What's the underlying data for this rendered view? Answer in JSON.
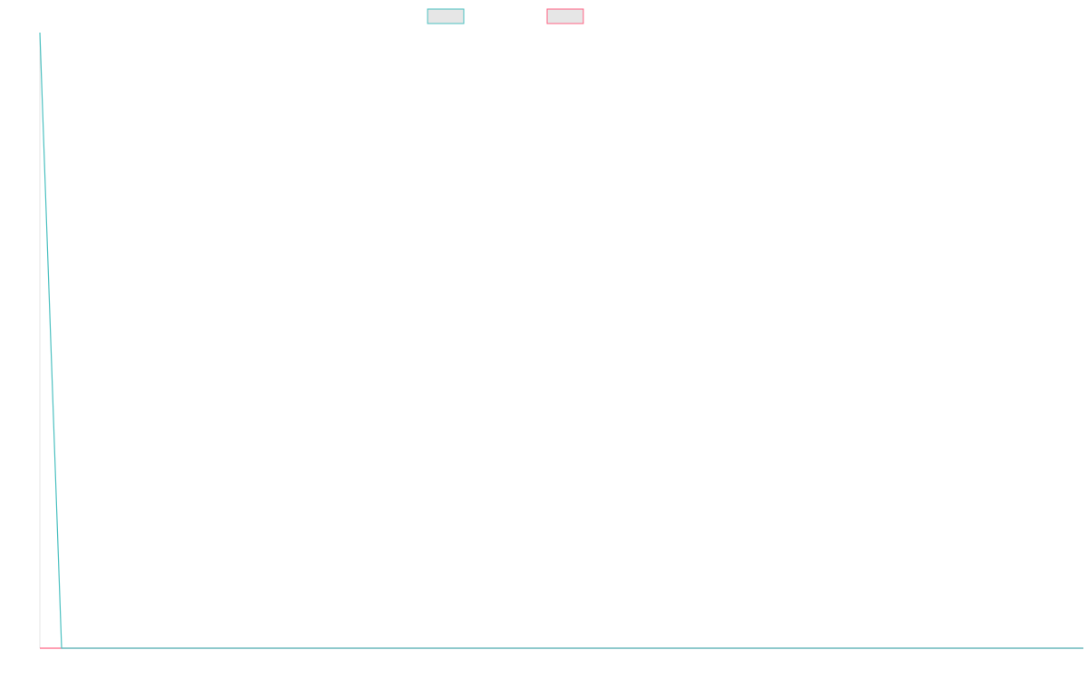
{
  "chart_data": {
    "type": "line",
    "title": "",
    "xlabel": "",
    "ylabel": "",
    "grid": false,
    "legend_position": "top-center",
    "x": [
      0,
      1,
      2,
      3,
      4,
      5,
      6,
      7,
      8,
      9,
      10,
      11,
      12,
      13,
      14,
      15,
      16,
      17,
      18,
      19,
      20,
      21,
      22,
      23,
      24,
      25,
      26,
      27,
      28,
      29,
      30,
      31,
      32,
      33,
      34,
      35,
      36,
      37,
      38,
      39,
      40,
      41,
      42,
      43,
      44,
      45,
      46,
      47,
      48
    ],
    "ylim": [
      0,
      100
    ],
    "series": [
      {
        "color": "#4bc0c0",
        "fill": "#e6e6e6",
        "values": [
          100,
          0,
          0,
          0,
          0,
          0,
          0,
          0,
          0,
          0,
          0,
          0,
          0,
          0,
          0,
          0,
          0,
          0,
          0,
          0,
          0,
          0,
          0,
          0,
          0,
          0,
          0,
          0,
          0,
          0,
          0,
          0,
          0,
          0,
          0,
          0,
          0,
          0,
          0,
          0,
          0,
          0,
          0,
          0,
          0,
          0,
          0,
          0,
          0
        ]
      },
      {
        "color": "#ff6384",
        "fill": "#e6e6e6",
        "values": [
          0,
          0,
          0,
          0,
          0,
          0,
          0,
          0,
          0,
          0,
          0,
          0,
          0,
          0,
          0,
          0,
          0,
          0,
          0,
          0,
          0,
          0,
          0,
          0,
          0,
          0,
          0,
          0,
          0,
          0,
          0,
          0,
          0,
          0,
          0,
          0,
          0,
          0,
          0,
          0,
          0,
          0,
          0,
          0,
          0,
          0,
          0,
          0,
          0
        ]
      }
    ],
    "axis_color": "#e6e6e6"
  }
}
